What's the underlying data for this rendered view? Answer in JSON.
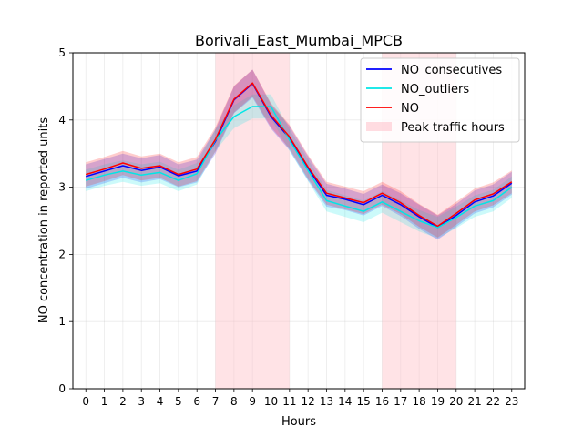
{
  "chart_data": {
    "type": "line",
    "title": "Borivali_East_Mumbai_MPCB",
    "xlabel": "Hours",
    "ylabel": "NO concentration in reported units",
    "xlim": [
      -0.7,
      23.7
    ],
    "ylim": [
      0,
      5
    ],
    "yticks": [
      0,
      1,
      2,
      3,
      4,
      5
    ],
    "x": [
      0,
      1,
      2,
      3,
      4,
      5,
      6,
      7,
      8,
      9,
      10,
      11,
      12,
      13,
      14,
      15,
      16,
      17,
      18,
      19,
      20,
      21,
      22,
      23
    ],
    "grid": true,
    "legend_position": "top-right",
    "series": [
      {
        "name": "NO_consecutives",
        "color": "#0000ff",
        "values": [
          3.16,
          3.24,
          3.32,
          3.25,
          3.3,
          3.17,
          3.24,
          3.68,
          4.3,
          4.54,
          4.05,
          3.73,
          3.28,
          2.88,
          2.82,
          2.74,
          2.88,
          2.74,
          2.56,
          2.4,
          2.58,
          2.78,
          2.87,
          3.06
        ],
        "band_lower": [
          2.98,
          3.06,
          3.14,
          3.07,
          3.12,
          3.0,
          3.07,
          3.5,
          4.1,
          4.33,
          3.87,
          3.55,
          3.1,
          2.71,
          2.66,
          2.58,
          2.72,
          2.57,
          2.38,
          2.22,
          2.41,
          2.61,
          2.7,
          2.89
        ],
        "band_upper": [
          3.34,
          3.42,
          3.5,
          3.43,
          3.48,
          3.34,
          3.41,
          3.86,
          4.5,
          4.75,
          4.23,
          3.91,
          3.46,
          3.05,
          2.98,
          2.9,
          3.04,
          2.91,
          2.74,
          2.58,
          2.75,
          2.95,
          3.04,
          3.23
        ]
      },
      {
        "name": "NO_outliers",
        "color": "#00e6e6",
        "values": [
          3.1,
          3.18,
          3.24,
          3.18,
          3.22,
          3.1,
          3.2,
          3.7,
          4.05,
          4.2,
          4.2,
          3.7,
          3.25,
          2.8,
          2.72,
          2.64,
          2.78,
          2.64,
          2.5,
          2.4,
          2.55,
          2.72,
          2.8,
          3.0
        ],
        "band_lower": [
          2.94,
          3.02,
          3.08,
          3.02,
          3.06,
          2.94,
          3.04,
          3.54,
          3.88,
          4.02,
          4.02,
          3.54,
          3.09,
          2.64,
          2.56,
          2.48,
          2.62,
          2.48,
          2.34,
          2.24,
          2.39,
          2.56,
          2.64,
          2.84
        ],
        "band_upper": [
          3.26,
          3.34,
          3.4,
          3.34,
          3.38,
          3.26,
          3.36,
          3.86,
          4.22,
          4.38,
          4.38,
          3.86,
          3.41,
          2.96,
          2.88,
          2.8,
          2.94,
          2.8,
          2.66,
          2.56,
          2.71,
          2.88,
          2.96,
          3.16
        ]
      },
      {
        "name": "NO",
        "color": "#ff0000",
        "values": [
          3.19,
          3.27,
          3.36,
          3.28,
          3.32,
          3.19,
          3.27,
          3.71,
          4.31,
          4.55,
          4.07,
          3.75,
          3.3,
          2.91,
          2.84,
          2.77,
          2.91,
          2.77,
          2.58,
          2.42,
          2.61,
          2.81,
          2.9,
          3.08
        ],
        "band_lower": [
          3.01,
          3.09,
          3.18,
          3.1,
          3.14,
          3.01,
          3.09,
          3.53,
          4.11,
          4.35,
          3.89,
          3.57,
          3.12,
          2.74,
          2.67,
          2.6,
          2.74,
          2.6,
          2.41,
          2.25,
          2.44,
          2.64,
          2.73,
          2.91
        ],
        "band_upper": [
          3.37,
          3.45,
          3.54,
          3.46,
          3.5,
          3.37,
          3.45,
          3.89,
          4.51,
          4.75,
          4.25,
          3.93,
          3.48,
          3.08,
          3.01,
          2.94,
          3.08,
          2.94,
          2.75,
          2.59,
          2.78,
          2.98,
          3.07,
          3.25
        ]
      }
    ],
    "shaded_regions": [
      {
        "name": "Peak traffic hours",
        "from": 7,
        "to": 11,
        "color": "#ffc0c8"
      },
      {
        "name": "Peak traffic hours",
        "from": 16,
        "to": 20,
        "color": "#ffc0c8"
      }
    ],
    "legend": [
      {
        "label": "NO_consecutives",
        "kind": "line",
        "color": "#0000ff"
      },
      {
        "label": "NO_outliers",
        "kind": "line",
        "color": "#00e6e6"
      },
      {
        "label": "NO",
        "kind": "line",
        "color": "#ff0000"
      },
      {
        "label": "Peak traffic hours",
        "kind": "patch",
        "color": "#ffc0c8"
      }
    ]
  }
}
